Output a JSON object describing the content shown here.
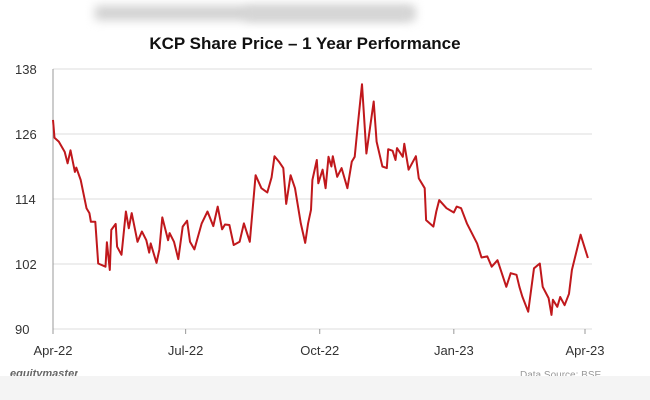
{
  "chart_data": {
    "type": "line",
    "title": "KCP Share Price – 1 Year Performance",
    "xlabel": "",
    "ylabel": "",
    "x_unit": "days since 1-Apr-22",
    "xlim": [
      0,
      365
    ],
    "ylim": [
      90,
      138
    ],
    "yticks": [
      90,
      102,
      114,
      126,
      138
    ],
    "xticks": [
      {
        "day": 0,
        "label": "Apr-22"
      },
      {
        "day": 91,
        "label": "Jul-22"
      },
      {
        "day": 183,
        "label": "Oct-22"
      },
      {
        "day": 275,
        "label": "Jan-23"
      },
      {
        "day": 365,
        "label": "Apr-23"
      }
    ],
    "grid": "horizontal",
    "line_color": "#c0181c",
    "series": [
      {
        "name": "KCP",
        "points": [
          [
            0,
            128.6
          ],
          [
            1,
            125.3
          ],
          [
            4,
            124.6
          ],
          [
            8,
            122.7
          ],
          [
            10,
            120.6
          ],
          [
            12,
            123.0
          ],
          [
            15,
            119.0
          ],
          [
            16,
            119.8
          ],
          [
            19,
            117.5
          ],
          [
            23,
            112.3
          ],
          [
            25,
            111.4
          ],
          [
            26,
            109.8
          ],
          [
            29,
            109.8
          ],
          [
            31,
            102.1
          ],
          [
            36,
            101.5
          ],
          [
            37,
            106.0
          ],
          [
            39,
            100.9
          ],
          [
            40,
            108.3
          ],
          [
            43,
            109.4
          ],
          [
            44,
            105.2
          ],
          [
            47,
            103.7
          ],
          [
            50,
            111.7
          ],
          [
            52,
            108.6
          ],
          [
            54,
            111.4
          ],
          [
            58,
            106.1
          ],
          [
            61,
            108.0
          ],
          [
            64,
            106.4
          ],
          [
            66,
            104.1
          ],
          [
            67,
            105.8
          ],
          [
            71,
            102.2
          ],
          [
            73,
            104.7
          ],
          [
            75,
            110.6
          ],
          [
            79,
            106.4
          ],
          [
            80,
            107.7
          ],
          [
            83,
            106.1
          ],
          [
            86,
            102.9
          ],
          [
            89,
            108.9
          ],
          [
            92,
            110.0
          ],
          [
            94,
            106.1
          ],
          [
            97,
            104.7
          ],
          [
            102,
            109.5
          ],
          [
            106,
            111.7
          ],
          [
            110,
            109.0
          ],
          [
            113,
            112.6
          ],
          [
            116,
            108.4
          ],
          [
            118,
            109.3
          ],
          [
            121,
            109.2
          ],
          [
            124,
            105.5
          ],
          [
            128,
            106.1
          ],
          [
            131,
            109.5
          ],
          [
            135,
            106.1
          ],
          [
            139,
            118.4
          ],
          [
            143,
            116.0
          ],
          [
            147,
            115.2
          ],
          [
            150,
            118.0
          ],
          [
            152,
            121.9
          ],
          [
            155,
            120.9
          ],
          [
            158,
            119.7
          ],
          [
            160,
            113.1
          ],
          [
            163,
            118.4
          ],
          [
            166,
            116.0
          ],
          [
            170,
            109.5
          ],
          [
            173,
            105.9
          ],
          [
            175,
            109.5
          ],
          [
            177,
            112.0
          ],
          [
            178,
            117.5
          ],
          [
            181,
            121.2
          ],
          [
            182,
            116.9
          ],
          [
            185,
            119.4
          ],
          [
            187,
            116.0
          ],
          [
            189,
            121.8
          ],
          [
            191,
            120.0
          ],
          [
            192,
            121.9
          ],
          [
            195,
            118.1
          ],
          [
            198,
            119.7
          ],
          [
            202,
            116.0
          ],
          [
            205,
            120.9
          ],
          [
            207,
            121.8
          ],
          [
            209,
            127.3
          ],
          [
            212,
            135.2
          ],
          [
            215,
            122.4
          ],
          [
            220,
            132.0
          ],
          [
            222,
            124.6
          ],
          [
            226,
            120.0
          ],
          [
            229,
            119.7
          ],
          [
            230,
            123.2
          ],
          [
            233,
            122.9
          ],
          [
            235,
            121.2
          ],
          [
            236,
            123.4
          ],
          [
            240,
            121.8
          ],
          [
            241,
            124.2
          ],
          [
            244,
            119.4
          ],
          [
            249,
            121.9
          ],
          [
            251,
            117.8
          ],
          [
            255,
            116.0
          ],
          [
            256,
            110.1
          ],
          [
            261,
            108.9
          ],
          [
            263,
            111.7
          ],
          [
            265,
            113.8
          ],
          [
            270,
            112.3
          ],
          [
            275,
            111.5
          ],
          [
            277,
            112.6
          ],
          [
            280,
            112.3
          ],
          [
            284,
            109.5
          ],
          [
            291,
            105.8
          ],
          [
            294,
            103.2
          ],
          [
            298,
            103.4
          ],
          [
            301,
            101.5
          ],
          [
            305,
            102.7
          ],
          [
            311,
            97.8
          ],
          [
            314,
            100.3
          ],
          [
            318,
            100.0
          ],
          [
            320,
            97.8
          ],
          [
            322,
            96.0
          ],
          [
            326,
            93.2
          ],
          [
            330,
            101.2
          ],
          [
            334,
            102.1
          ],
          [
            336,
            97.8
          ],
          [
            340,
            95.7
          ],
          [
            342,
            92.6
          ],
          [
            343,
            95.4
          ],
          [
            346,
            94.1
          ],
          [
            348,
            95.9
          ],
          [
            351,
            94.4
          ],
          [
            354,
            96.5
          ],
          [
            356,
            100.9
          ],
          [
            362,
            107.4
          ],
          [
            367,
            103.1
          ]
        ]
      }
    ]
  },
  "footer": {
    "brand": "equitymaster",
    "source": "Data Source: BSE"
  }
}
